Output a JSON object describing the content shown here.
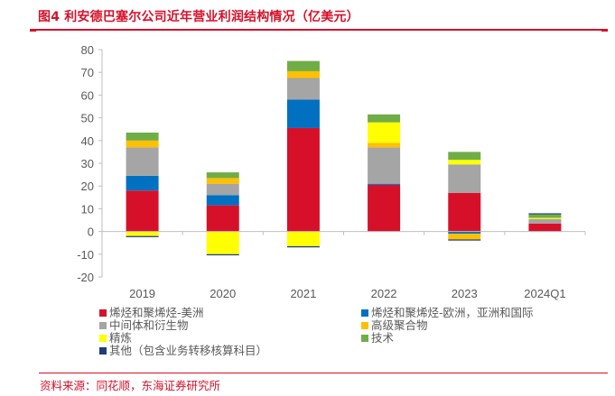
{
  "title": "图4  利安德巴塞尔公司近年营业利润结构情况（亿美元）",
  "source": "资料来源：同花顺，东海证券研究所",
  "chart_data": {
    "type": "bar",
    "stacked": true,
    "title": "利安德巴塞尔公司近年营业利润结构情况（亿美元）",
    "xlabel": "",
    "ylabel": "",
    "ylim": [
      -20,
      80
    ],
    "yticks": [
      -20,
      -10,
      0,
      10,
      20,
      30,
      40,
      50,
      60,
      70,
      80
    ],
    "ytick_labels": [
      "-20",
      "-10",
      "0",
      "10",
      "20",
      "30",
      "40",
      "50",
      "60",
      "70",
      "80"
    ],
    "grid": false,
    "legend_position": "bottom",
    "categories": [
      "2019",
      "2020",
      "2021",
      "2022",
      "2023",
      "2024Q1"
    ],
    "series": [
      {
        "name": "烯烃和聚烯烃-美洲",
        "color": "#d7102a",
        "values": [
          18,
          11.5,
          45.5,
          20.5,
          17,
          3.5
        ]
      },
      {
        "name": "烯烃和聚烯烃-欧洲，亚洲和国际",
        "color": "#0070c0",
        "values": [
          6.5,
          4.5,
          12.5,
          0.5,
          -1,
          0
        ]
      },
      {
        "name": "中间体和衍生物",
        "color": "#a5a5a5",
        "values": [
          12.5,
          5,
          9.5,
          16,
          12.5,
          2
        ]
      },
      {
        "name": "高级聚合物",
        "color": "#ffc000",
        "values": [
          3,
          2.5,
          3,
          2,
          -2.5,
          0
        ]
      },
      {
        "name": "精炼",
        "color": "#ffff00",
        "values": [
          -2,
          -10,
          -6.5,
          9,
          2,
          0.5
        ]
      },
      {
        "name": "技术",
        "color": "#70ad47",
        "values": [
          3.5,
          2.5,
          4.5,
          3.5,
          3.5,
          1.5
        ]
      },
      {
        "name": "其他（包含业务转移核算科目）",
        "color": "#1f3c78",
        "values": [
          -0.5,
          -0.5,
          -0.5,
          0,
          -0.5,
          0.5
        ]
      }
    ]
  }
}
